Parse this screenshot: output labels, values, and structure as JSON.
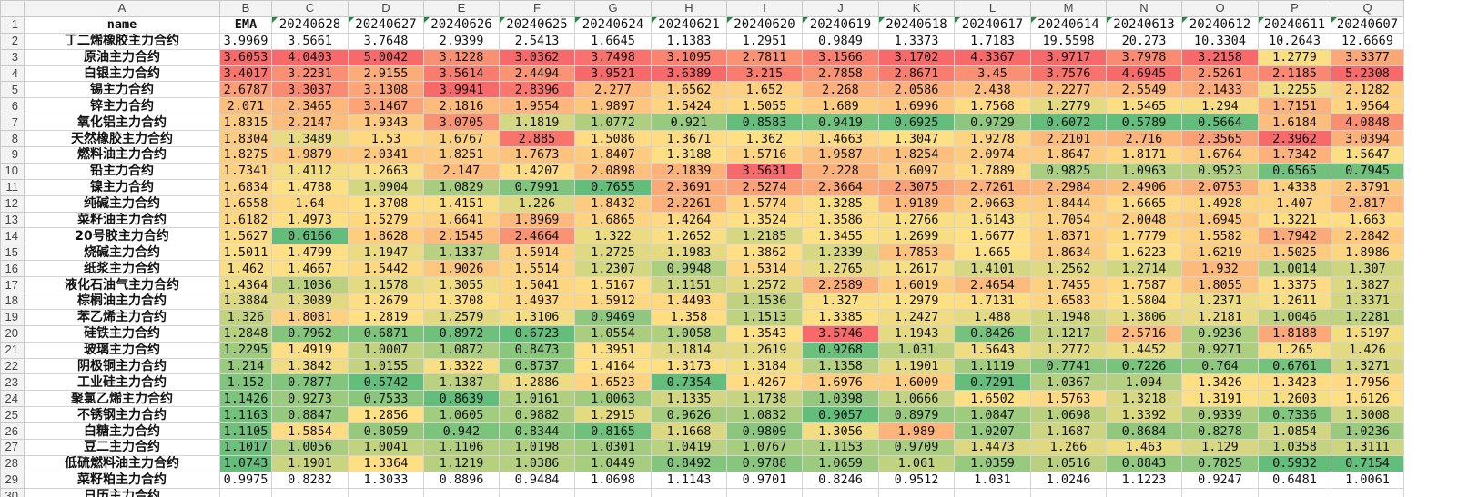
{
  "sheet": {
    "column_letters": [
      "A",
      "B",
      "C",
      "D",
      "E",
      "F",
      "G",
      "H",
      "I",
      "J",
      "K",
      "L",
      "M",
      "N",
      "O",
      "P",
      "Q"
    ],
    "header": {
      "name": "name",
      "ema": "EMA",
      "dates": [
        "20240628",
        "20240627",
        "20240626",
        "20240625",
        "20240624",
        "20240621",
        "20240620",
        "20240619",
        "20240618",
        "20240617",
        "20240614",
        "20240613",
        "20240612",
        "20240611",
        "20240607"
      ]
    },
    "rows": [
      {
        "name": "丁二烯橡胶主力合约",
        "values": [
          "3.9969",
          "3.5661",
          "3.7648",
          "2.9399",
          "2.5413",
          "1.6645",
          "1.1383",
          "1.2951",
          "0.9849",
          "1.3373",
          "1.7183",
          "19.5598",
          "20.273",
          "10.3304",
          "10.2643",
          "12.6669"
        ]
      },
      {
        "name": "原油主力合约",
        "values": [
          "3.6053",
          "4.0403",
          "5.0042",
          "3.1228",
          "3.0362",
          "3.7498",
          "3.1095",
          "2.7811",
          "3.1566",
          "3.1702",
          "4.3367",
          "3.9717",
          "3.7978",
          "3.2158",
          "1.2779",
          "3.3377"
        ]
      },
      {
        "name": "白银主力合约",
        "values": [
          "3.4017",
          "3.2231",
          "2.9155",
          "3.5614",
          "2.4494",
          "3.9521",
          "3.6389",
          "3.215",
          "2.7858",
          "2.8671",
          "3.45",
          "3.7576",
          "4.6945",
          "2.5261",
          "2.1185",
          "5.2308"
        ]
      },
      {
        "name": "锡主力合约",
        "values": [
          "2.6787",
          "3.3037",
          "3.1308",
          "3.9941",
          "2.8396",
          "2.277",
          "1.6562",
          "1.652",
          "2.268",
          "2.0586",
          "2.438",
          "2.2277",
          "2.5549",
          "2.1433",
          "1.2255",
          "2.1282"
        ]
      },
      {
        "name": "锌主力合约",
        "values": [
          "2.071",
          "2.3465",
          "3.1467",
          "2.1816",
          "1.9554",
          "1.9897",
          "1.5424",
          "1.5055",
          "1.689",
          "1.6996",
          "1.7568",
          "1.2779",
          "1.5465",
          "1.294",
          "1.7151",
          "1.9564"
        ]
      },
      {
        "name": "氧化铝主力合约",
        "values": [
          "1.8315",
          "2.2147",
          "1.9343",
          "3.0705",
          "1.1819",
          "1.0772",
          "0.921",
          "0.8583",
          "0.9419",
          "0.6925",
          "0.9729",
          "0.6072",
          "0.5789",
          "0.5664",
          "1.6184",
          "4.0848"
        ]
      },
      {
        "name": "天然橡胶主力合约",
        "values": [
          "1.8304",
          "1.3489",
          "1.53",
          "1.6767",
          "2.885",
          "1.5086",
          "1.3671",
          "1.362",
          "1.4663",
          "1.3047",
          "1.9278",
          "2.2101",
          "2.716",
          "2.3565",
          "2.3962",
          "3.0394"
        ]
      },
      {
        "name": "燃料油主力合约",
        "values": [
          "1.8275",
          "1.9879",
          "2.0341",
          "1.8251",
          "1.7673",
          "1.8407",
          "1.3188",
          "1.5716",
          "1.9587",
          "1.8254",
          "2.0974",
          "1.8647",
          "1.8171",
          "1.6764",
          "1.7342",
          "1.5647"
        ]
      },
      {
        "name": "铅主力合约",
        "values": [
          "1.7341",
          "1.4112",
          "1.2663",
          "2.147",
          "1.4207",
          "2.0898",
          "2.1839",
          "3.5631",
          "2.228",
          "1.6097",
          "1.7889",
          "0.9825",
          "1.0963",
          "0.9523",
          "0.6565",
          "0.7945"
        ]
      },
      {
        "name": "镍主力合约",
        "values": [
          "1.6834",
          "1.4788",
          "1.0904",
          "1.0829",
          "0.7991",
          "0.7655",
          "2.3691",
          "2.5274",
          "2.3664",
          "2.3075",
          "2.7261",
          "2.2984",
          "2.4906",
          "2.0753",
          "1.4338",
          "2.3791"
        ]
      },
      {
        "name": "纯碱主力合约",
        "values": [
          "1.6558",
          "1.64",
          "1.3708",
          "1.4151",
          "1.226",
          "1.8432",
          "2.2261",
          "1.5774",
          "1.3285",
          "1.9189",
          "2.0663",
          "1.8444",
          "1.6665",
          "1.4928",
          "1.407",
          "2.817"
        ]
      },
      {
        "name": "菜籽油主力合约",
        "values": [
          "1.6182",
          "1.4973",
          "1.5279",
          "1.6641",
          "1.8969",
          "1.6865",
          "1.4264",
          "1.3524",
          "1.3586",
          "1.2766",
          "1.6143",
          "1.7054",
          "2.0048",
          "1.6945",
          "1.3221",
          "1.663"
        ]
      },
      {
        "name": "20号胶主力合约",
        "values": [
          "1.5627",
          "0.6166",
          "1.8628",
          "2.1545",
          "2.4664",
          "1.322",
          "1.2652",
          "1.2185",
          "1.3455",
          "1.2699",
          "1.6677",
          "1.8371",
          "1.7779",
          "1.5582",
          "1.7942",
          "2.2842"
        ]
      },
      {
        "name": "烧碱主力合约",
        "values": [
          "1.5011",
          "1.4799",
          "1.1947",
          "1.1337",
          "1.5914",
          "1.2725",
          "1.1983",
          "1.3862",
          "1.2339",
          "1.7853",
          "1.665",
          "1.8634",
          "1.6223",
          "1.6219",
          "1.5025",
          "1.8986"
        ]
      },
      {
        "name": "纸浆主力合约",
        "values": [
          "1.462",
          "1.4667",
          "1.5442",
          "1.9026",
          "1.5514",
          "1.2307",
          "0.9948",
          "1.5314",
          "1.2765",
          "1.2617",
          "1.4101",
          "1.2562",
          "1.2714",
          "1.932",
          "1.0014",
          "1.307"
        ]
      },
      {
        "name": "液化石油气主力合约",
        "values": [
          "1.4364",
          "1.1036",
          "1.1578",
          "1.3055",
          "1.5041",
          "1.5167",
          "1.1151",
          "1.2572",
          "2.2589",
          "1.6019",
          "2.4654",
          "1.7455",
          "1.7587",
          "1.8055",
          "1.3375",
          "1.3827"
        ]
      },
      {
        "name": "棕榈油主力合约",
        "values": [
          "1.3884",
          "1.3089",
          "1.2679",
          "1.3708",
          "1.4937",
          "1.5912",
          "1.4493",
          "1.1536",
          "1.327",
          "1.2979",
          "1.7131",
          "1.6583",
          "1.5804",
          "1.2371",
          "1.2611",
          "1.3371"
        ]
      },
      {
        "name": "苯乙烯主力合约",
        "values": [
          "1.326",
          "1.8081",
          "1.2819",
          "1.2579",
          "1.3106",
          "0.9469",
          "1.358",
          "1.1513",
          "1.3385",
          "1.2427",
          "1.488",
          "1.1948",
          "1.3806",
          "1.2181",
          "1.0046",
          "1.2281"
        ]
      },
      {
        "name": "硅铁主力合约",
        "values": [
          "1.2848",
          "0.7962",
          "0.6871",
          "0.8972",
          "0.6723",
          "1.0554",
          "1.0058",
          "1.3543",
          "3.5746",
          "1.1943",
          "0.8426",
          "1.1217",
          "2.5716",
          "0.9236",
          "1.8188",
          "1.5197"
        ]
      },
      {
        "name": "玻璃主力合约",
        "values": [
          "1.2295",
          "1.4919",
          "1.0007",
          "1.0872",
          "0.8473",
          "1.3951",
          "1.1814",
          "1.2619",
          "0.9268",
          "1.031",
          "1.5643",
          "1.2772",
          "1.4452",
          "0.9271",
          "1.265",
          "1.426"
        ]
      },
      {
        "name": "阴极铜主力合约",
        "values": [
          "1.214",
          "1.3842",
          "1.0155",
          "1.3322",
          "0.8737",
          "1.4164",
          "1.3173",
          "1.3184",
          "1.1358",
          "1.1901",
          "1.1119",
          "0.7741",
          "0.7226",
          "0.764",
          "0.6761",
          "1.3271"
        ]
      },
      {
        "name": "工业硅主力合约",
        "values": [
          "1.152",
          "0.7877",
          "0.5742",
          "1.1387",
          "1.2886",
          "1.6523",
          "0.7354",
          "1.4267",
          "1.6976",
          "1.6009",
          "0.7291",
          "1.0367",
          "1.094",
          "1.3426",
          "1.3423",
          "1.7956"
        ]
      },
      {
        "name": "聚氯乙烯主力合约",
        "values": [
          "1.1426",
          "0.9273",
          "0.7533",
          "0.8639",
          "1.0161",
          "1.0063",
          "1.1335",
          "1.1738",
          "1.0398",
          "1.0666",
          "1.6502",
          "1.5763",
          "1.3218",
          "1.3191",
          "1.2603",
          "1.6126"
        ]
      },
      {
        "name": "不锈钢主力合约",
        "values": [
          "1.1163",
          "0.8847",
          "1.2856",
          "1.0605",
          "0.9882",
          "1.2915",
          "0.9626",
          "1.0832",
          "0.9057",
          "0.8979",
          "1.0847",
          "1.0698",
          "1.3392",
          "0.9339",
          "0.7336",
          "1.3008"
        ]
      },
      {
        "name": "白糖主力合约",
        "values": [
          "1.1105",
          "1.5854",
          "0.8059",
          "0.942",
          "0.8344",
          "0.8165",
          "1.1668",
          "0.9809",
          "1.3056",
          "1.989",
          "1.0207",
          "1.1687",
          "0.8684",
          "0.8278",
          "1.0854",
          "1.0236"
        ]
      },
      {
        "name": "豆二主力合约",
        "values": [
          "1.1017",
          "1.0056",
          "1.0041",
          "1.1106",
          "1.0198",
          "1.0301",
          "1.0419",
          "1.0767",
          "1.1153",
          "0.9709",
          "1.4473",
          "1.266",
          "1.463",
          "1.129",
          "1.0358",
          "1.3111"
        ]
      },
      {
        "name": "低硫燃料油主力合约",
        "values": [
          "1.0743",
          "1.1901",
          "1.3364",
          "1.1219",
          "1.0386",
          "1.0449",
          "0.8492",
          "0.9788",
          "1.0659",
          "1.061",
          "1.0359",
          "1.0516",
          "0.8843",
          "0.7825",
          "0.5932",
          "0.7154"
        ]
      },
      {
        "name": "菜籽粕主力合约",
        "values": [
          "0.9975",
          "0.8282",
          "1.3033",
          "0.8896",
          "0.9484",
          "1.0698",
          "1.1143",
          "0.9701",
          "0.8246",
          "0.9512",
          "1.031",
          "1.0246",
          "1.1223",
          "0.9247",
          "0.6481",
          "1.0061"
        ]
      },
      {
        "name": "日历主力合约",
        "values": [
          "",
          "",
          "",
          "",
          "",
          "",
          "",
          "",
          "",
          "",
          "",
          "",
          "",
          "",
          "",
          ""
        ]
      }
    ],
    "colors": {
      "green": "#63be7b",
      "yellow": "#ffe084",
      "red": "#f8696b",
      "header_bg": "#f3f3f3",
      "grid": "#d4d4d4"
    }
  }
}
